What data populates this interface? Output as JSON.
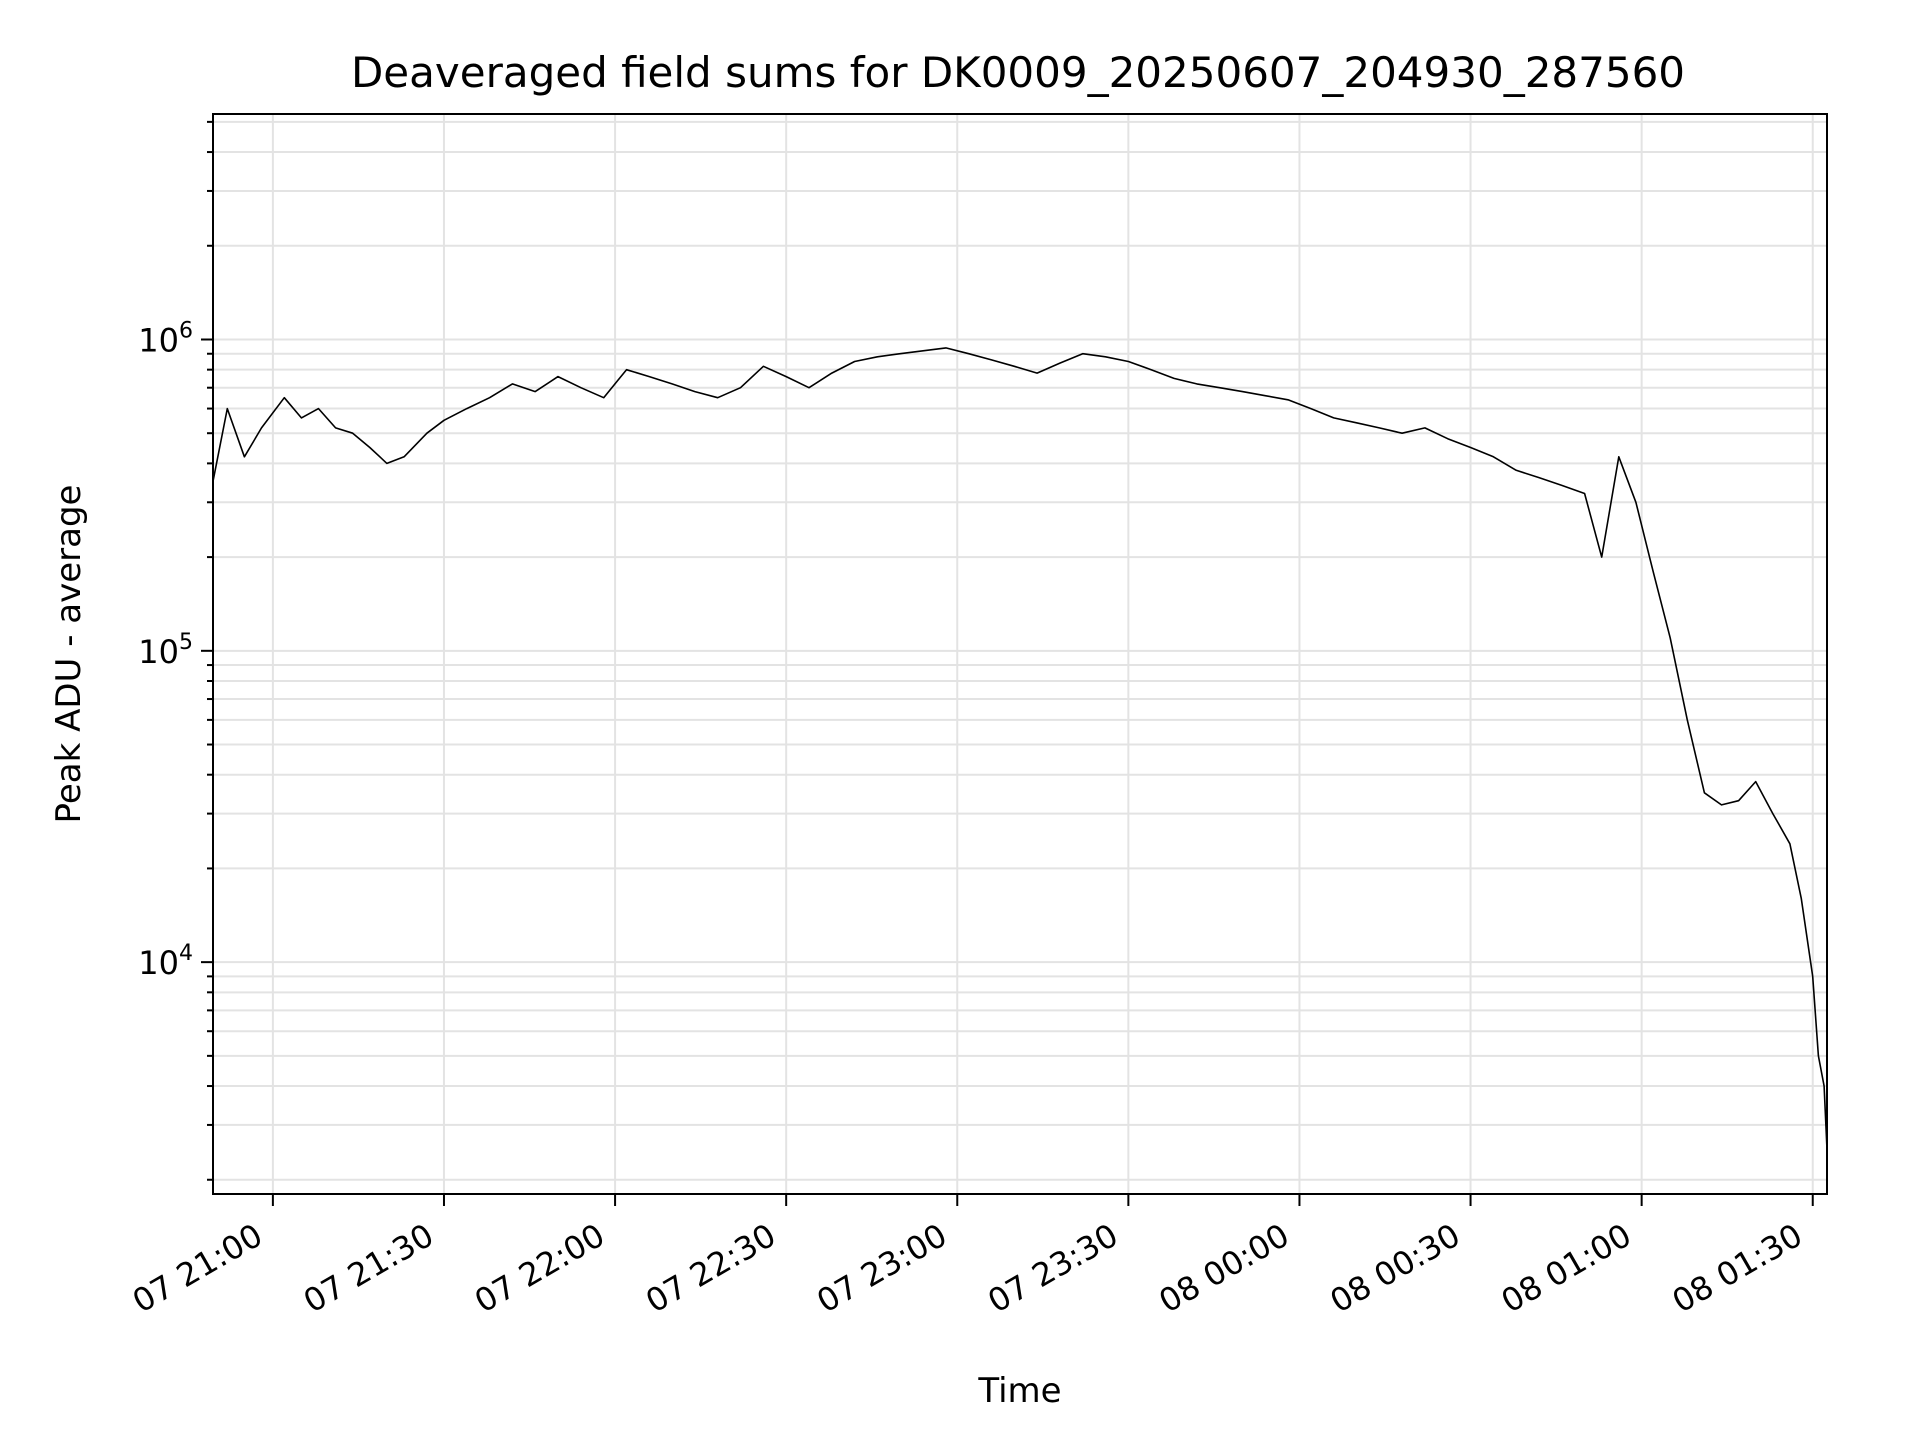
{
  "chart_data": {
    "type": "line",
    "title": "Deaveraged field sums for DK0009_20250607_204930_287560",
    "xlabel": "Time",
    "ylabel": "Peak ADU - average",
    "yscale": "log",
    "grid": true,
    "xlim": [
      "2025-06-07 20:49:30",
      "2025-06-08 01:32:30"
    ],
    "ylim": [
      1800,
      5300000
    ],
    "x_ticks": [
      {
        "time": "2025-06-07 21:00",
        "label": "07 21:00"
      },
      {
        "time": "2025-06-07 21:30",
        "label": "07 21:30"
      },
      {
        "time": "2025-06-07 22:00",
        "label": "07 22:00"
      },
      {
        "time": "2025-06-07 22:30",
        "label": "07 22:30"
      },
      {
        "time": "2025-06-07 23:00",
        "label": "07 23:00"
      },
      {
        "time": "2025-06-07 23:30",
        "label": "07 23:30"
      },
      {
        "time": "2025-06-08 00:00",
        "label": "08 00:00"
      },
      {
        "time": "2025-06-08 00:30",
        "label": "08 00:30"
      },
      {
        "time": "2025-06-08 01:00",
        "label": "08 01:00"
      },
      {
        "time": "2025-06-08 01:30",
        "label": "08 01:30"
      }
    ],
    "y_ticks": [
      {
        "value": 10000,
        "base": "10",
        "exp": "4"
      },
      {
        "value": 100000,
        "base": "10",
        "exp": "5"
      },
      {
        "value": 1000000,
        "base": "10",
        "exp": "6"
      }
    ],
    "series": [
      {
        "color": "#000000",
        "x": [
          "2025-06-07 20:49:30",
          "2025-06-07 20:52:00",
          "2025-06-07 20:55:00",
          "2025-06-07 20:58:00",
          "2025-06-07 21:02:00",
          "2025-06-07 21:05:00",
          "2025-06-07 21:08:00",
          "2025-06-07 21:11:00",
          "2025-06-07 21:14:00",
          "2025-06-07 21:17:00",
          "2025-06-07 21:20:00",
          "2025-06-07 21:23:00",
          "2025-06-07 21:27:00",
          "2025-06-07 21:30:00",
          "2025-06-07 21:34:00",
          "2025-06-07 21:38:00",
          "2025-06-07 21:42:00",
          "2025-06-07 21:46:00",
          "2025-06-07 21:50:00",
          "2025-06-07 21:54:00",
          "2025-06-07 21:58:00",
          "2025-06-07 22:02:00",
          "2025-06-07 22:06:00",
          "2025-06-07 22:10:00",
          "2025-06-07 22:14:00",
          "2025-06-07 22:18:00",
          "2025-06-07 22:22:00",
          "2025-06-07 22:26:00",
          "2025-06-07 22:30:00",
          "2025-06-07 22:34:00",
          "2025-06-07 22:38:00",
          "2025-06-07 22:42:00",
          "2025-06-07 22:46:00",
          "2025-06-07 22:50:00",
          "2025-06-07 22:54:00",
          "2025-06-07 22:58:00",
          "2025-06-07 23:02:00",
          "2025-06-07 23:06:00",
          "2025-06-07 23:10:00",
          "2025-06-07 23:14:00",
          "2025-06-07 23:18:00",
          "2025-06-07 23:22:00",
          "2025-06-07 23:26:00",
          "2025-06-07 23:30:00",
          "2025-06-07 23:34:00",
          "2025-06-07 23:38:00",
          "2025-06-07 23:42:00",
          "2025-06-07 23:46:00",
          "2025-06-07 23:50:00",
          "2025-06-07 23:54:00",
          "2025-06-07 23:58:00",
          "2025-06-08 00:02:00",
          "2025-06-08 00:06:00",
          "2025-06-08 00:10:00",
          "2025-06-08 00:14:00",
          "2025-06-08 00:18:00",
          "2025-06-08 00:22:00",
          "2025-06-08 00:26:00",
          "2025-06-08 00:30:00",
          "2025-06-08 00:34:00",
          "2025-06-08 00:38:00",
          "2025-06-08 00:42:00",
          "2025-06-08 00:46:00",
          "2025-06-08 00:50:00",
          "2025-06-08 00:53:00",
          "2025-06-08 00:56:00",
          "2025-06-08 00:59:00",
          "2025-06-08 01:02:00",
          "2025-06-08 01:05:00",
          "2025-06-08 01:08:00",
          "2025-06-08 01:11:00",
          "2025-06-08 01:14:00",
          "2025-06-08 01:17:00",
          "2025-06-08 01:20:00",
          "2025-06-08 01:23:00",
          "2025-06-08 01:26:00",
          "2025-06-08 01:28:00",
          "2025-06-08 01:30:00",
          "2025-06-08 01:31:00",
          "2025-06-08 01:32:00",
          "2025-06-08 01:32:30"
        ],
        "y": [
          350000,
          600000,
          420000,
          520000,
          650000,
          560000,
          600000,
          520000,
          500000,
          450000,
          400000,
          420000,
          500000,
          550000,
          600000,
          650000,
          720000,
          680000,
          760000,
          700000,
          650000,
          800000,
          760000,
          720000,
          680000,
          650000,
          700000,
          820000,
          760000,
          700000,
          780000,
          850000,
          880000,
          900000,
          920000,
          940000,
          900000,
          860000,
          820000,
          780000,
          840000,
          900000,
          880000,
          850000,
          800000,
          750000,
          720000,
          700000,
          680000,
          660000,
          640000,
          600000,
          560000,
          540000,
          520000,
          500000,
          520000,
          480000,
          450000,
          420000,
          380000,
          360000,
          340000,
          320000,
          200000,
          420000,
          300000,
          180000,
          110000,
          60000,
          35000,
          32000,
          33000,
          38000,
          30000,
          24000,
          16000,
          9000,
          5000,
          4000,
          2500
        ]
      }
    ]
  }
}
